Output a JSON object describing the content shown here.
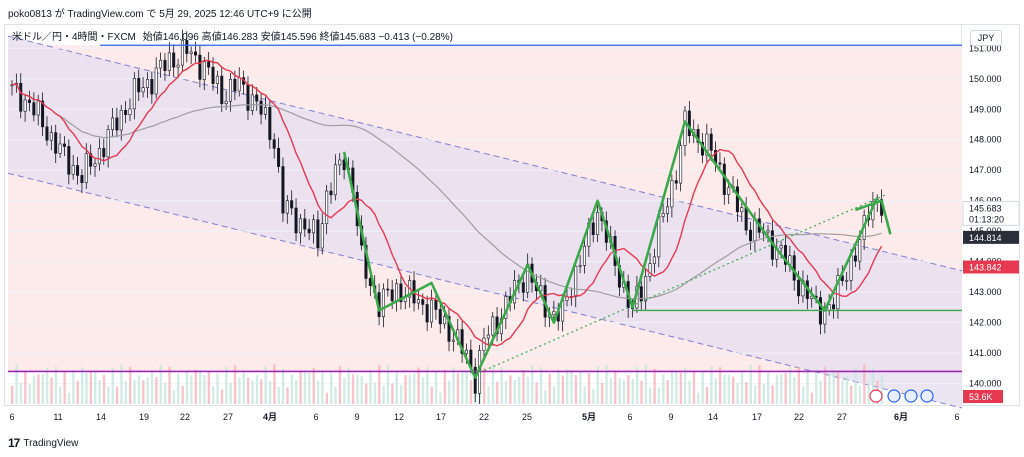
{
  "header": {
    "caption": "poko0813 が TradingView.com で 5月 29, 2025 12:46 UTC+9 に公開"
  },
  "legend": {
    "symbol": "米ドル／円・4時間・FXCM",
    "open_label": "始値",
    "open": "146.096",
    "high_label": "高値",
    "high": "146.283",
    "low_label": "安値",
    "low": "145.596",
    "close_label": "終値",
    "close": "145.683",
    "change": "−0.413 (−0.28%)"
  },
  "currency_button": "JPY",
  "footer": {
    "brand": "TradingView"
  },
  "colors": {
    "up": "#26a69a",
    "down": "#131722",
    "candle": "#131722",
    "ma_short": "#e53950",
    "ma_long": "#9e9e9e",
    "channel_fill": "#e7dff0",
    "channel_line": "#7f7fd0",
    "resistance": "#2962ff",
    "support_low": "#9c27b0",
    "neckline": "#3ba94a",
    "zigzag": "#3ba94a",
    "background_zone": "#fde9ea"
  },
  "chart_data": {
    "type": "candlestick",
    "symbol": "USDJPY",
    "timeframe": "4h",
    "ylim": [
      139.2,
      151.6
    ],
    "yticks": [
      140,
      141,
      142,
      143,
      144,
      145,
      146,
      147,
      148,
      149,
      150,
      151
    ],
    "ytick_labels": [
      "140.000",
      "141.000",
      "142.000",
      "143.000",
      "144.000",
      "145.000",
      "146.000",
      "147.000",
      "148.000",
      "149.000",
      "150.000",
      "151.000"
    ],
    "xticks": [
      {
        "label": "6",
        "bold": false
      },
      {
        "label": "11",
        "bold": false
      },
      {
        "label": "14",
        "bold": false
      },
      {
        "label": "19",
        "bold": false
      },
      {
        "label": "22",
        "bold": false
      },
      {
        "label": "27",
        "bold": false
      },
      {
        "label": "4月",
        "bold": true
      },
      {
        "label": "6",
        "bold": false
      },
      {
        "label": "9",
        "bold": false
      },
      {
        "label": "12",
        "bold": false
      },
      {
        "label": "17",
        "bold": false
      },
      {
        "label": "22",
        "bold": false
      },
      {
        "label": "25",
        "bold": false
      },
      {
        "label": "5月",
        "bold": true
      },
      {
        "label": "6",
        "bold": false
      },
      {
        "label": "9",
        "bold": false
      },
      {
        "label": "14",
        "bold": false
      },
      {
        "label": "17",
        "bold": false
      },
      {
        "label": "22",
        "bold": false
      },
      {
        "label": "27",
        "bold": false
      },
      {
        "label": "6月",
        "bold": true
      },
      {
        "label": "6",
        "bold": false
      }
    ],
    "price_path": [
      [
        0,
        149.6
      ],
      [
        4,
        149.2
      ],
      [
        8,
        148.3
      ],
      [
        12,
        147.4
      ],
      [
        16,
        146.8
      ],
      [
        20,
        147.6
      ],
      [
        24,
        148.6
      ],
      [
        28,
        149.5
      ],
      [
        32,
        150.0
      ],
      [
        36,
        150.6
      ],
      [
        40,
        150.9
      ],
      [
        44,
        150.4
      ],
      [
        48,
        149.5
      ],
      [
        52,
        149.8
      ],
      [
        56,
        149.2
      ],
      [
        60,
        148.0
      ],
      [
        62,
        145.8
      ],
      [
        66,
        145.3
      ],
      [
        70,
        144.7
      ],
      [
        72,
        146.2
      ],
      [
        76,
        147.4
      ],
      [
        78,
        146.5
      ],
      [
        80,
        144.0
      ],
      [
        84,
        142.6
      ],
      [
        88,
        143.1
      ],
      [
        92,
        142.8
      ],
      [
        96,
        142.4
      ],
      [
        100,
        141.8
      ],
      [
        104,
        140.9
      ],
      [
        106,
        140.2
      ],
      [
        108,
        141.4
      ],
      [
        112,
        142.3
      ],
      [
        116,
        143.3
      ],
      [
        118,
        143.7
      ],
      [
        120,
        143.0
      ],
      [
        124,
        142.2
      ],
      [
        126,
        142.3
      ],
      [
        128,
        143.3
      ],
      [
        132,
        144.8
      ],
      [
        134,
        145.7
      ],
      [
        136,
        144.9
      ],
      [
        138,
        143.8
      ],
      [
        140,
        143.2
      ],
      [
        142,
        142.4
      ],
      [
        144,
        143.0
      ],
      [
        148,
        145.0
      ],
      [
        152,
        147.0
      ],
      [
        154,
        148.5
      ],
      [
        156,
        148.2
      ],
      [
        160,
        147.6
      ],
      [
        164,
        146.4
      ],
      [
        168,
        145.2
      ],
      [
        172,
        144.9
      ],
      [
        176,
        144.3
      ],
      [
        180,
        143.3
      ],
      [
        184,
        142.5
      ],
      [
        186,
        142.4
      ],
      [
        188,
        142.6
      ],
      [
        190,
        143.5
      ],
      [
        194,
        144.5
      ],
      [
        196,
        145.8
      ],
      [
        198,
        146.1
      ],
      [
        199,
        145.7
      ]
    ],
    "ma_short_label": "",
    "ma_long_label": "",
    "levels": {
      "resistance": 151.1,
      "neckline": 142.4,
      "support_low": 140.4
    },
    "price_labels": [
      {
        "value": "145.683",
        "sub": "01:13:20",
        "price": 145.683
      },
      {
        "value": "144.814",
        "price": 144.814
      },
      {
        "value": "143.842",
        "price": 143.842
      },
      {
        "value": "53.6K",
        "price": null
      }
    ],
    "volume_label": "53.6K"
  }
}
